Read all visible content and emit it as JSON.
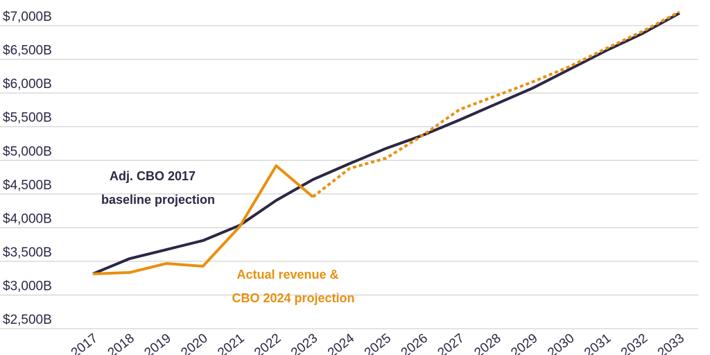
{
  "chart_data": {
    "type": "line",
    "categories": [
      "2017",
      "2018",
      "2019",
      "2020",
      "2021",
      "2022",
      "2023",
      "2024",
      "2025",
      "2026",
      "2027",
      "2028",
      "2029",
      "2030",
      "2031",
      "2032",
      "2033"
    ],
    "series": [
      {
        "color": "#2b2745",
        "style": "solid",
        "values": [
          3314,
          3540,
          3674,
          3808,
          4034,
          4405,
          4714,
          4951,
          5178,
          5373,
          5600,
          5837,
          6074,
          6352,
          6630,
          6887,
          7186
        ]
      },
      {
        "color": "#e8900f",
        "style": "solid",
        "values": [
          3314,
          3334,
          3468,
          3427,
          4014,
          4920,
          4457,
          null,
          null,
          null,
          null,
          null,
          null,
          null,
          null,
          null,
          null
        ]
      },
      {
        "color": "#e8900f",
        "style": "dotted",
        "values": [
          null,
          null,
          null,
          null,
          null,
          null,
          4457,
          4879,
          5033,
          5373,
          5754,
          5960,
          6166,
          6393,
          6661,
          6918,
          7206
        ]
      }
    ],
    "annotations": [
      {
        "lines": [
          "Adj. CBO 2017",
          "baseline projection"
        ],
        "color": "#2b2745"
      },
      {
        "lines": [
          "Actual revenue &",
          "CBO 2024 projection"
        ],
        "color": "#e8900f"
      }
    ],
    "ylim": [
      2500,
      7250
    ],
    "yticks": [
      {
        "value": 2500,
        "label": "$2,500B"
      },
      {
        "value": 3000,
        "label": "$3,000B"
      },
      {
        "value": 3500,
        "label": "$3,500B"
      },
      {
        "value": 4000,
        "label": "$4,000B"
      },
      {
        "value": 4500,
        "label": "$4,500B"
      },
      {
        "value": 5000,
        "label": "$5,000B"
      },
      {
        "value": 5500,
        "label": "$5,500B"
      },
      {
        "value": 6000,
        "label": "$6,000B"
      },
      {
        "value": 6500,
        "label": "$6,500B"
      },
      {
        "value": 7000,
        "label": "$7,000B"
      }
    ],
    "grid": true
  }
}
